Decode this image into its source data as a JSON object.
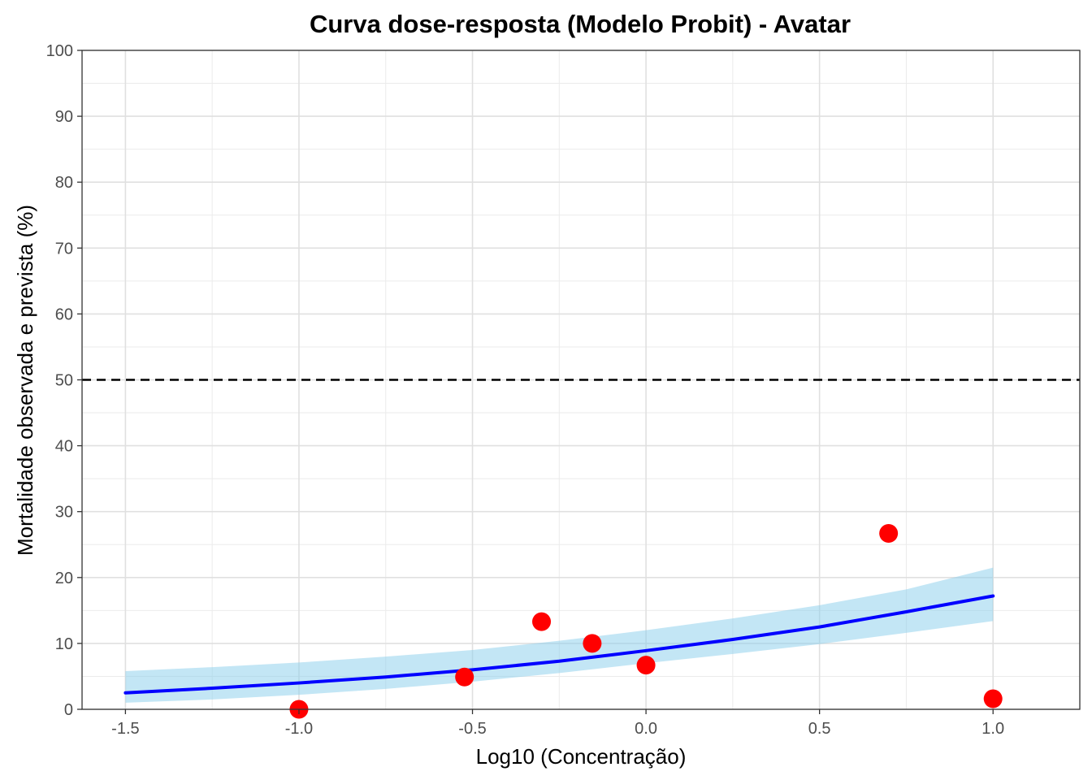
{
  "chart_data": {
    "type": "line",
    "title": "Curva dose-resposta (Modelo Probit) - Avatar",
    "xlabel": "Log10 (Concentração)",
    "ylabel": "Mortalidade observada e prevista (%)",
    "xlim": [
      -1.625,
      1.25
    ],
    "ylim": [
      0,
      100
    ],
    "x_ticks": [
      -1.5,
      -1.0,
      -0.5,
      0.0,
      0.5,
      1.0
    ],
    "x_tick_labels": [
      "-1.5",
      "-1.0",
      "-0.5",
      "0.0",
      "0.5",
      "1.0"
    ],
    "y_ticks": [
      0,
      10,
      20,
      30,
      40,
      50,
      60,
      70,
      80,
      90,
      100
    ],
    "y_tick_labels": [
      "0",
      "10",
      "20",
      "30",
      "40",
      "50",
      "60",
      "70",
      "80",
      "90",
      "100"
    ],
    "grid": true,
    "reference_line": {
      "y": 50,
      "style": "dashed",
      "color": "#000000"
    },
    "fitted_curve": {
      "color": "#0000ff",
      "x": [
        -1.5,
        -1.25,
        -1.0,
        -0.75,
        -0.5,
        -0.25,
        0.0,
        0.25,
        0.5,
        0.75,
        1.0
      ],
      "y": [
        2.5,
        3.2,
        4.0,
        4.9,
        6.0,
        7.3,
        8.9,
        10.6,
        12.5,
        14.8,
        17.2
      ]
    },
    "confidence_band": {
      "color": "#87ceeb",
      "x": [
        -1.5,
        -1.25,
        -1.0,
        -0.75,
        -0.5,
        -0.25,
        0.0,
        0.25,
        0.5,
        0.75,
        1.0
      ],
      "lower": [
        1.0,
        1.5,
        2.2,
        3.1,
        4.2,
        5.5,
        7.0,
        8.4,
        9.9,
        11.6,
        13.4
      ],
      "upper": [
        5.8,
        6.4,
        7.1,
        8.0,
        9.0,
        10.4,
        12.0,
        13.8,
        15.8,
        18.2,
        21.5
      ]
    },
    "observed_points": {
      "color": "#ff0000",
      "x": [
        -1.0,
        -0.523,
        -0.301,
        -0.155,
        0.0,
        0.699,
        1.0
      ],
      "y": [
        0.0,
        4.9,
        13.3,
        10.0,
        6.7,
        26.7,
        1.6
      ]
    }
  }
}
